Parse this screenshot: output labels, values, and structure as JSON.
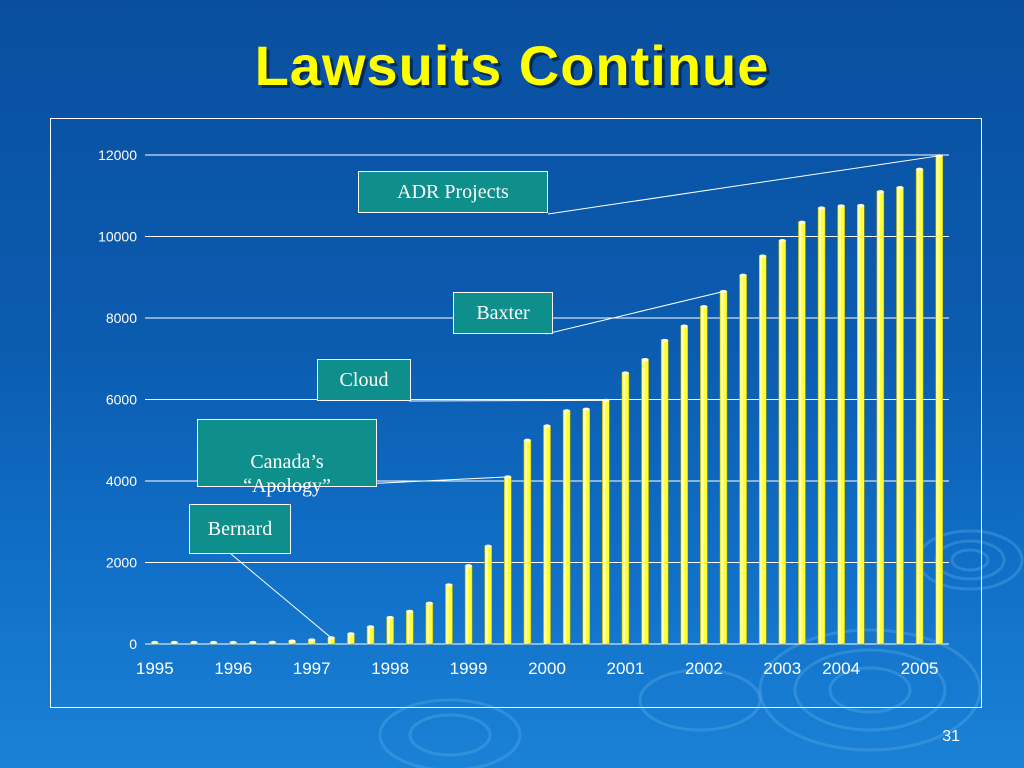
{
  "slide": {
    "title": "Lawsuits Continue",
    "page_number": "31"
  },
  "colors": {
    "background": "#0b5cb0",
    "title": "#ffff00",
    "bar_fill": "#ffff33",
    "bar_highlight": "#ffffcc",
    "gridline": "#ffffff",
    "callout_fill": "#0f8f8c",
    "callout_text": "#ffffff"
  },
  "callouts": [
    {
      "id": "adr",
      "label": "ADR Projects",
      "bar_index": 40
    },
    {
      "id": "baxter",
      "label": "Baxter",
      "bar_index": 29
    },
    {
      "id": "cloud",
      "label": "Cloud",
      "bar_index": 23
    },
    {
      "id": "canada",
      "label": "Canada’s\n“Apology”",
      "bar_index": 18
    },
    {
      "id": "bernard",
      "label": "Bernard",
      "bar_index": 9
    }
  ],
  "chart_data": {
    "type": "bar",
    "title": "",
    "xlabel": "",
    "ylabel": "",
    "ylim": [
      0,
      12000
    ],
    "yticks": [
      0,
      2000,
      4000,
      6000,
      8000,
      10000,
      12000
    ],
    "grid": true,
    "legend": "none",
    "xtick_labels": [
      {
        "label": "1995",
        "bar_index": 0.5
      },
      {
        "label": "1996",
        "bar_index": 4.5
      },
      {
        "label": "1997",
        "bar_index": 8.5
      },
      {
        "label": "1998",
        "bar_index": 12.5
      },
      {
        "label": "1999",
        "bar_index": 16.5
      },
      {
        "label": "2000",
        "bar_index": 20.5
      },
      {
        "label": "2001",
        "bar_index": 24.5
      },
      {
        "label": "2002",
        "bar_index": 28.5
      },
      {
        "label": "2003",
        "bar_index": 32.5
      },
      {
        "label": "2004",
        "bar_index": 35.5
      },
      {
        "label": "2005",
        "bar_index": 39.5
      }
    ],
    "values": [
      10,
      10,
      10,
      10,
      15,
      20,
      40,
      70,
      100,
      150,
      250,
      420,
      650,
      800,
      1000,
      1450,
      1920,
      2400,
      4100,
      5000,
      5350,
      5720,
      5760,
      5980,
      6650,
      6980,
      7450,
      7800,
      8280,
      8650,
      9050,
      9520,
      9900,
      10350,
      10700,
      10750,
      10760,
      11100,
      11200,
      11650,
      11980
    ]
  }
}
